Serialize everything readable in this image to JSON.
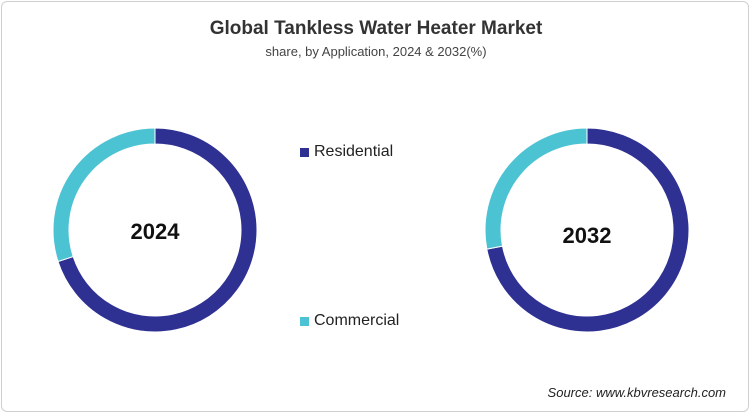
{
  "chart_data": {
    "type": "pie",
    "title": "Global Tankless Water Heater Market",
    "subtitle": "share, by Application, 2024 & 2032(%)",
    "source": "Source: www.kbvresearch.com",
    "series": [
      {
        "name": "2024",
        "labels": [
          "Residential",
          "Commercial"
        ],
        "values": [
          70,
          30
        ]
      },
      {
        "name": "2032",
        "labels": [
          "Residential",
          "Commercial"
        ],
        "values": [
          72,
          28
        ]
      }
    ],
    "legend": [
      {
        "label": "Residential",
        "color": "#2e3192"
      },
      {
        "label": "Commercial",
        "color": "#4cc3d3"
      }
    ],
    "legend_position": "center"
  }
}
